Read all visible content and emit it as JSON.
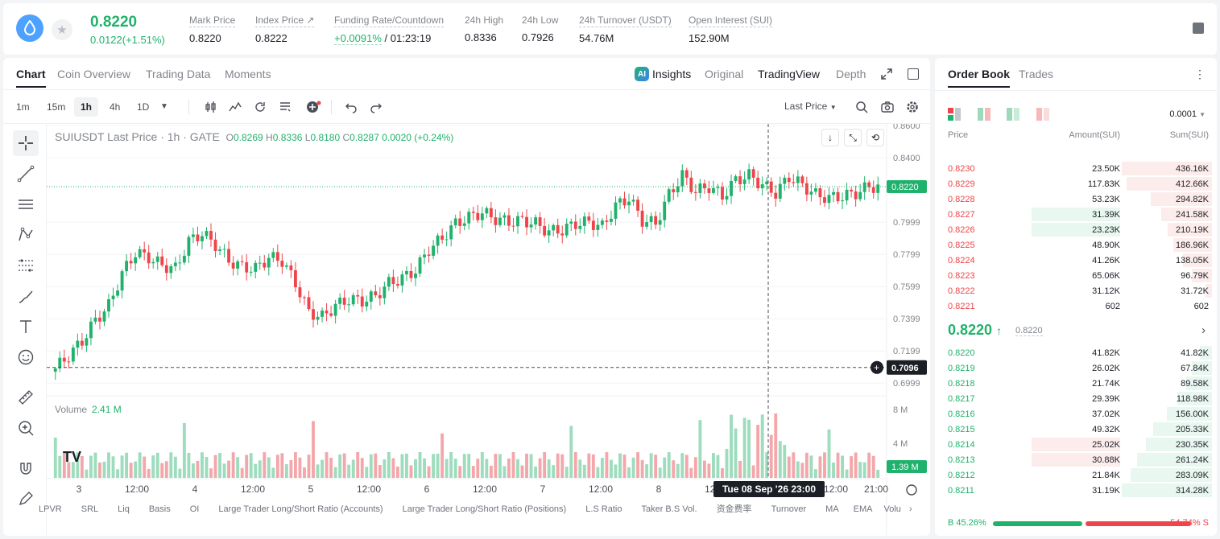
{
  "ticker": {
    "last_price": "0.8220",
    "change": "0.0122(+1.51%)",
    "stats": [
      {
        "label": "Mark Price",
        "value": "0.8220"
      },
      {
        "label": "Index Price ↗",
        "value": "0.8222"
      },
      {
        "label": "Funding Rate/Countdown",
        "value_green": "+0.0091%",
        "value": " / 01:23:19"
      },
      {
        "label": "24h High",
        "value": "0.8336"
      },
      {
        "label": "24h Low",
        "value": "0.7926"
      },
      {
        "label": "24h Turnover (USDT)",
        "value": "54.76M"
      },
      {
        "label": "Open Interest (SUI)",
        "value": "152.90M"
      }
    ]
  },
  "chart_tabs": [
    "Chart",
    "Coin Overview",
    "Trading Data",
    "Moments"
  ],
  "view_options": {
    "ai_badge": "AI",
    "insights": "Insights",
    "original": "Original",
    "tradingview": "TradingView",
    "depth": "Depth"
  },
  "timeframes": [
    "1m",
    "15m",
    "1h",
    "4h",
    "1D"
  ],
  "toolbar": {
    "price_source": "Last Price"
  },
  "legend": {
    "title": "SUIUSDT Last Price · 1h · GATE",
    "o": "0.8269",
    "h": "0.8336",
    "l": "0.8180",
    "c": "0.8287",
    "chg": "0.0020 (+0.24%)"
  },
  "volume_legend": {
    "label": "Volume",
    "value": "2.41 M"
  },
  "bottom_indicators": [
    "LPVR",
    "SRL",
    "Liq",
    "Basis",
    "OI",
    "Large Trader Long/Short Ratio (Accounts)",
    "Large Trader Long/Short Ratio (Positions)",
    "L.S Ratio",
    "Taker B.S Vol.",
    "资金费率",
    "Turnover",
    "MA",
    "EMA",
    "Volu"
  ],
  "chart_data": {
    "type": "candlestick",
    "title": "SUIUSDT Last Price · 1h · GATE",
    "price_axis": [
      "0.8600",
      "0.8400",
      "0.8220",
      "0.7999",
      "0.7799",
      "0.7599",
      "0.7399",
      "0.7199",
      "0.7096",
      "0.6999"
    ],
    "price_ylim": [
      0.696,
      0.861
    ],
    "current_price": "0.8220",
    "crosshair_price": "0.7096",
    "volume_axis": [
      "8 M",
      "4 M",
      "1.39 M"
    ],
    "time_axis": [
      "3",
      "12:00",
      "4",
      "12:00",
      "5",
      "12:00",
      "6",
      "12:00",
      "7",
      "12:00",
      "8",
      "12:00",
      "12:00",
      "21:00"
    ],
    "crosshair_time": "Tue 08 Sep '26   23:00",
    "candles_close_trend": [
      0.709,
      0.717,
      0.726,
      0.739,
      0.748,
      0.768,
      0.781,
      0.778,
      0.773,
      0.771,
      0.788,
      0.793,
      0.786,
      0.776,
      0.772,
      0.771,
      0.778,
      0.776,
      0.762,
      0.744,
      0.741,
      0.748,
      0.752,
      0.751,
      0.754,
      0.762,
      0.765,
      0.77,
      0.783,
      0.79,
      0.799,
      0.803,
      0.806,
      0.802,
      0.8,
      0.801,
      0.799,
      0.794,
      0.795,
      0.799,
      0.8,
      0.797,
      0.81,
      0.815,
      0.801,
      0.799,
      0.817,
      0.829,
      0.819,
      0.822,
      0.816,
      0.826,
      0.829,
      0.823,
      0.818,
      0.828,
      0.823,
      0.817,
      0.815,
      0.816,
      0.818,
      0.822
    ]
  },
  "order_book": {
    "tabs": [
      "Order Book",
      "Trades"
    ],
    "precision": "0.0001",
    "headers": {
      "price": "Price",
      "amount": "Amount(SUI)",
      "sum": "Sum(SUI)"
    },
    "asks": [
      {
        "price": "0.8230",
        "amount": "23.50K",
        "sum": "436.16K",
        "depth": 1.0
      },
      {
        "price": "0.8229",
        "amount": "117.83K",
        "sum": "412.66K",
        "depth": 0.95
      },
      {
        "price": "0.8228",
        "amount": "53.23K",
        "sum": "294.82K",
        "depth": 0.68
      },
      {
        "price": "0.8227",
        "amount": "31.39K",
        "sum": "241.58K",
        "depth": 0.56,
        "hl": true
      },
      {
        "price": "0.8226",
        "amount": "23.23K",
        "sum": "210.19K",
        "depth": 0.49,
        "hl": true
      },
      {
        "price": "0.8225",
        "amount": "48.90K",
        "sum": "186.96K",
        "depth": 0.43
      },
      {
        "price": "0.8224",
        "amount": "41.26K",
        "sum": "138.05K",
        "depth": 0.32
      },
      {
        "price": "0.8223",
        "amount": "65.06K",
        "sum": "96.79K",
        "depth": 0.22
      },
      {
        "price": "0.8222",
        "amount": "31.12K",
        "sum": "31.72K",
        "depth": 0.07
      },
      {
        "price": "0.8221",
        "amount": "602",
        "sum": "602",
        "depth": 0.0
      }
    ],
    "mid_price": "0.8220",
    "mid_arrow": "↑",
    "mark_price": "0.8220",
    "bids": [
      {
        "price": "0.8220",
        "amount": "41.82K",
        "sum": "41.82K",
        "depth": 0.13
      },
      {
        "price": "0.8219",
        "amount": "26.02K",
        "sum": "67.84K",
        "depth": 0.22
      },
      {
        "price": "0.8218",
        "amount": "21.74K",
        "sum": "89.58K",
        "depth": 0.29
      },
      {
        "price": "0.8217",
        "amount": "29.39K",
        "sum": "118.98K",
        "depth": 0.38
      },
      {
        "price": "0.8216",
        "amount": "37.02K",
        "sum": "156.00K",
        "depth": 0.5
      },
      {
        "price": "0.8215",
        "amount": "49.32K",
        "sum": "205.33K",
        "depth": 0.65
      },
      {
        "price": "0.8214",
        "amount": "25.02K",
        "sum": "230.35K",
        "depth": 0.73,
        "hl": true
      },
      {
        "price": "0.8213",
        "amount": "30.88K",
        "sum": "261.24K",
        "depth": 0.83,
        "hl": true
      },
      {
        "price": "0.8212",
        "amount": "21.84K",
        "sum": "283.09K",
        "depth": 0.9
      },
      {
        "price": "0.8211",
        "amount": "31.19K",
        "sum": "314.28K",
        "depth": 1.0
      }
    ],
    "buy_ratio": "B 45.26%",
    "sell_ratio": "54.74% S",
    "buy_fraction": 0.4526
  },
  "colors": {
    "up": "#20b26c",
    "down": "#ef454a",
    "up_bg": "#e8f7ef",
    "down_bg": "#fdecec"
  }
}
